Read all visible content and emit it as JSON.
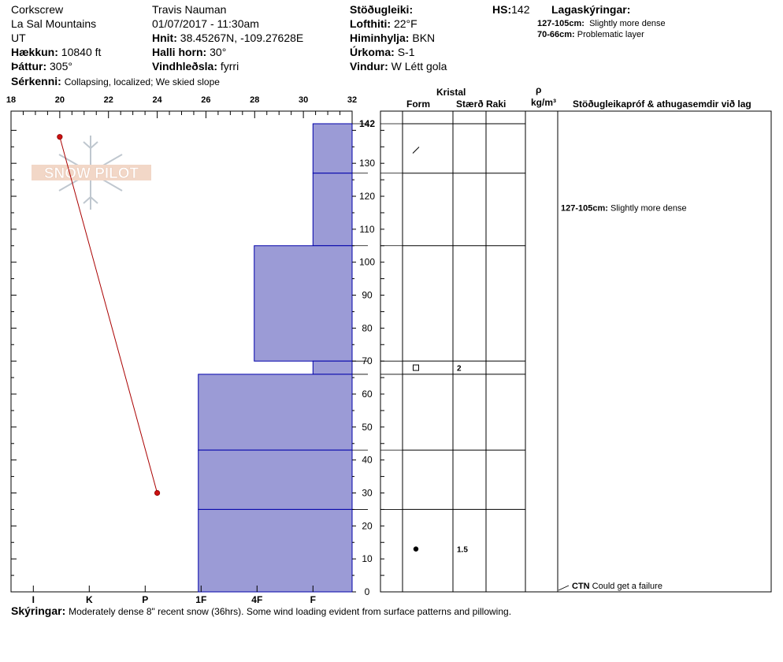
{
  "header": {
    "location_name": "Corkscrew",
    "range": "La Sal Mountains",
    "state": "UT",
    "elevation_label": "Hækkun:",
    "elevation_value": "10840 ft",
    "aspect_label": "Þáttur:",
    "aspect_value": "305°",
    "features_label": "Sérkenni:",
    "features_value": "Collapsing, localized;  We skied slope",
    "observer": "Travis Nauman",
    "datetime": "01/07/2017 - 11:30am",
    "coords_label": "Hnit:",
    "coords_value": "38.45267N, -109.27628E",
    "slope_label": "Halli horn:",
    "slope_value": "30°",
    "wind_loading_label": "Vindhleðsla:",
    "wind_loading_value": "fyrri",
    "stability_label": "Stöðugleiki:",
    "stability_value": "",
    "air_temp_label": "Lofthiti:",
    "air_temp_value": "22°F",
    "sky_label": "Himinhylja:",
    "sky_value": "BKN",
    "precip_label": "Úrkoma:",
    "precip_value": "S-1",
    "wind_label": "Vindur:",
    "wind_value": "W Létt gola",
    "hs_label": "HS:",
    "hs_value": "142",
    "legend_title": "Lagaskýringar:",
    "legend_items": [
      {
        "range": "127-105cm:",
        "text": "Slightly more dense"
      },
      {
        "range": "70-66cm:",
        "text": "Problematic layer"
      }
    ]
  },
  "footer": {
    "notes_label": "Skýringar:",
    "notes_value": "Moderately dense 8\" recent snow (36hrs). Some wind loading evident from surface patterns and pillowing."
  },
  "logo_text": "SNOW PILOT",
  "columns": {
    "crystal": "Kristal",
    "form": "Form",
    "size": "Stærð",
    "moisture": "Raki",
    "rho": "ρ",
    "density_unit": "kg/m³",
    "tests": "Stöðugleikapróf & athugasemdir við lag"
  },
  "chart_data": {
    "type": "snow-profile",
    "colors": {
      "hardness_fill": "#9b9bd6",
      "hardness_line": "#0000aa",
      "temp_line": "#aa0000",
      "grid": "#000000"
    },
    "temperature_axis": {
      "ticks": [
        18,
        20,
        22,
        24,
        26,
        28,
        30,
        32
      ],
      "range": [
        18,
        32
      ],
      "unit": "°F"
    },
    "hardness_axis": {
      "labels": [
        "I",
        "K",
        "P",
        "1F",
        "4F",
        "F"
      ],
      "values": [
        5,
        4,
        3,
        2,
        1,
        0
      ]
    },
    "depth_axis": {
      "range": [
        0,
        142
      ],
      "ticks": [
        0,
        10,
        20,
        30,
        40,
        50,
        60,
        70,
        80,
        90,
        100,
        110,
        120,
        130,
        140
      ],
      "top_label": "142"
    },
    "temperature_profile": [
      {
        "depth": 138,
        "temp": 20
      },
      {
        "depth": 30,
        "temp": 24
      }
    ],
    "layers": [
      {
        "top": 142,
        "bottom": 127,
        "hardness": 0.7
      },
      {
        "top": 127,
        "bottom": 105,
        "hardness": 0.7
      },
      {
        "top": 105,
        "bottom": 70,
        "hardness": 1.75
      },
      {
        "top": 70,
        "bottom": 66,
        "hardness": 0.7
      },
      {
        "top": 66,
        "bottom": 43,
        "hardness": 2.75
      },
      {
        "top": 43,
        "bottom": 25,
        "hardness": 2.75
      },
      {
        "top": 25,
        "bottom": 0,
        "hardness": 2.75
      }
    ],
    "crystals": [
      {
        "depth": 134,
        "form": "slash",
        "size": ""
      },
      {
        "depth": 68,
        "form": "square",
        "size": "2"
      },
      {
        "depth": 13,
        "form": "dot",
        "size": "1.5"
      }
    ],
    "comments": [
      {
        "depth": 116.5,
        "range": "127-105cm:",
        "text": "Slightly more dense"
      }
    ],
    "tests": [
      {
        "depth": 0,
        "code": "CTN",
        "text": "Could get a failure"
      }
    ]
  }
}
